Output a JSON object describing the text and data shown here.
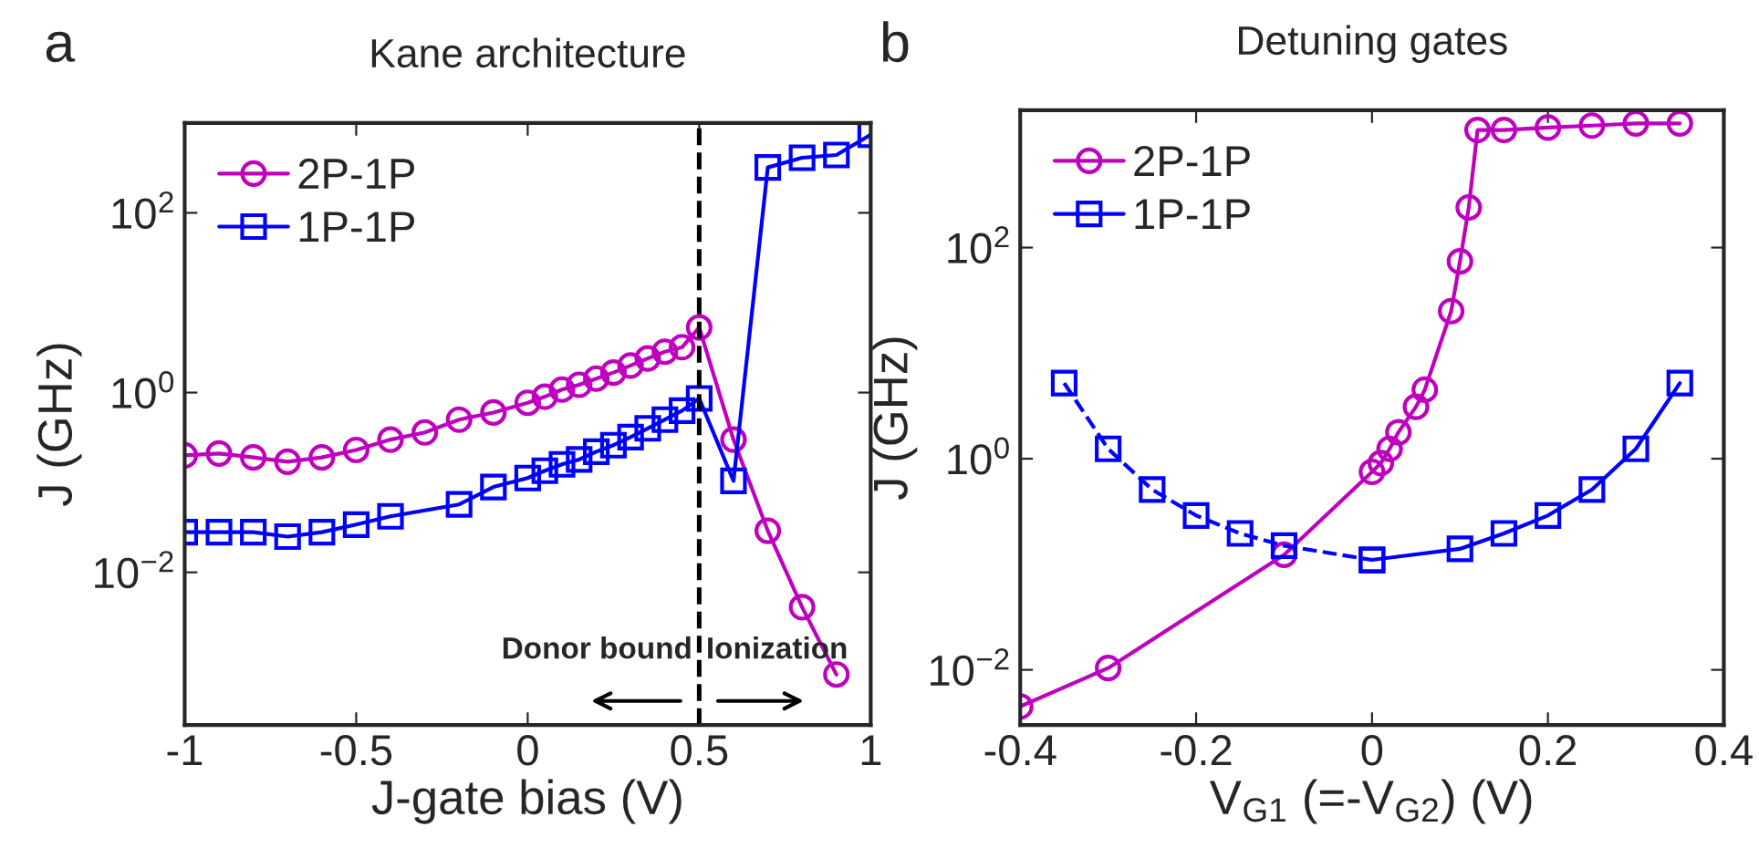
{
  "chart_data": [
    {
      "type": "line",
      "title": "Kane architecture",
      "xlabel": "J-gate bias (V)",
      "ylabel": "J (GHz)",
      "log": "y",
      "xlim": [
        -1,
        1
      ],
      "xticks": [
        -1,
        -0.5,
        0,
        0.5,
        1
      ],
      "ylim": [
        0.0002,
        1000
      ],
      "yticks": [
        {
          "value": 0.01,
          "label": "10$^{−2}$"
        },
        {
          "value": 1,
          "label": "10$^{0}$"
        },
        {
          "value": 100,
          "label": "10$^{2}$"
        }
      ],
      "grid": false,
      "legend": "top left",
      "line_style": "solid",
      "ref_lines": [
        {
          "axis": "x",
          "value": 0.5,
          "color": "#000000",
          "line_style": "dashed"
        }
      ],
      "annotations": [
        "a",
        "Donor bound",
        "Ionization"
      ],
      "series": [
        {
          "name": "2P-1P",
          "color": "#bf00bf",
          "marker": "circle",
          "x": [
            -1,
            -0.9,
            -0.8,
            -0.7,
            -0.6,
            -0.5,
            -0.4,
            -0.3,
            -0.2,
            -0.1,
            0,
            0.05,
            0.1,
            0.15,
            0.2,
            0.25,
            0.3,
            0.35,
            0.4,
            0.45,
            0.5,
            0.6,
            0.7,
            0.8,
            0.9
          ],
          "values": [
            0.2,
            0.21,
            0.19,
            0.17,
            0.19,
            0.23,
            0.3,
            0.36,
            0.5,
            0.6,
            0.77,
            0.9,
            1.08,
            1.22,
            1.43,
            1.67,
            2.0,
            2.4,
            2.85,
            3.2,
            5.3,
            0.3,
            0.029,
            0.0041,
            0.00073
          ]
        },
        {
          "name": "1P-1P",
          "color": "#0000ff",
          "marker": "square",
          "x": [
            -1,
            -0.9,
            -0.8,
            -0.7,
            -0.6,
            -0.5,
            -0.4,
            -0.2,
            -0.1,
            0,
            0.05,
            0.1,
            0.15,
            0.2,
            0.25,
            0.3,
            0.35,
            0.4,
            0.45,
            0.5,
            0.6,
            0.7,
            0.8,
            0.9,
            1.0
          ],
          "values": [
            0.028,
            0.028,
            0.028,
            0.025,
            0.028,
            0.034,
            0.042,
            0.057,
            0.089,
            0.112,
            0.135,
            0.159,
            0.18,
            0.22,
            0.26,
            0.32,
            0.4,
            0.5,
            0.63,
            0.86,
            0.104,
            320,
            410,
            440,
            740
          ]
        }
      ]
    },
    {
      "type": "line",
      "title": "Detuning gates",
      "xlabel": "V$_{G1}$ (=-V$_{G2}$) (V)",
      "ylabel": "J (GHz)",
      "log": "y",
      "xlim": [
        -0.4,
        0.4
      ],
      "xticks": [
        -0.4,
        -0.2,
        0,
        0.2,
        0.4
      ],
      "ylim": [
        0.003,
        2000
      ],
      "yticks": [
        {
          "value": 0.01,
          "label": "10$^{−2}$"
        },
        {
          "value": 1,
          "label": "10$^{0}$"
        },
        {
          "value": 100,
          "label": "10$^{2}$"
        }
      ],
      "grid": false,
      "legend": "top left",
      "annotations": [
        "b"
      ],
      "series": [
        {
          "name": "2P-1P",
          "color": "#bf00bf",
          "marker": "circle",
          "line_style": "solid",
          "x": [
            -0.4,
            -0.3,
            -0.1,
            0,
            0.01,
            0.02,
            0.03,
            0.05,
            0.06,
            0.09,
            0.1,
            0.11,
            0.12,
            0.15,
            0.2,
            0.25,
            0.3,
            0.35
          ],
          "values": [
            0.0045,
            0.0104,
            0.123,
            0.75,
            0.91,
            1.24,
            1.78,
            3.1,
            4.5,
            25,
            74,
            240,
            1300,
            1300,
            1370,
            1430,
            1500,
            1500
          ]
        },
        {
          "color": "#0000ff",
          "marker": "square",
          "line_style": "dashed",
          "x": [
            -0.35,
            -0.3,
            -0.25,
            -0.2,
            -0.15,
            -0.1,
            0
          ],
          "values": [
            5.2,
            1.24,
            0.51,
            0.29,
            0.196,
            0.15,
            0.11
          ]
        },
        {
          "name": "1P-1P",
          "color": "#0000ff",
          "marker": "square",
          "line_style": "solid",
          "x": [
            0,
            0.1,
            0.15,
            0.2,
            0.25,
            0.3,
            0.35
          ],
          "values": [
            0.11,
            0.14,
            0.196,
            0.29,
            0.51,
            1.24,
            5.2
          ]
        }
      ]
    }
  ]
}
